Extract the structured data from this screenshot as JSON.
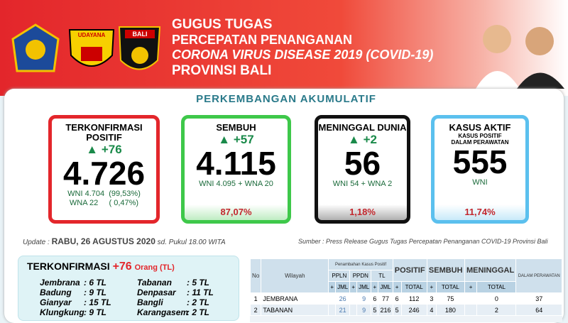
{
  "header": {
    "title_lines": [
      "GUGUS TUGAS",
      "PERCEPATAN PENANGANAN",
      "CORONA VIRUS DISEASE 2019 (COVID-19)",
      "PROVINSI BALI"
    ],
    "logo_texts": [
      "UDAYANA",
      "BALI"
    ]
  },
  "section_title": "PERKEMBANGAN AKUMULATIF",
  "cards": [
    {
      "label": "TERKONFIRMASI POSITIF",
      "change": "+76",
      "value": "4.726",
      "details": [
        "WNI 4.704  (99,53%)",
        "WNA 22     ( 0,47%)"
      ],
      "color": "#e3262b"
    },
    {
      "label": "SEMBUH",
      "change": "+57",
      "value": "4.115",
      "details": [
        "WNI 4.095 + WNA 20"
      ],
      "percent": "87,07%",
      "color": "#3ec84a"
    },
    {
      "label": "MENINGGAL DUNIA",
      "change": "+2",
      "value": "56",
      "details": [
        "WNI 54 + WNA 2"
      ],
      "percent": "1,18%",
      "color": "#111111"
    },
    {
      "label": "KASUS AKTIF",
      "sublabel": "KASUS POSITIF DALAM PERAWATAN",
      "value": "555",
      "details": [
        "WNI"
      ],
      "percent": "11,74%",
      "color": "#5bc0ee"
    }
  ],
  "update": {
    "label": "Update :",
    "date": "RABU, 26 AGUSTUS 2020",
    "time": "sd. Pukul 18.00 WITA",
    "source_label": "Sumber :",
    "source": "Press Release Gugus Tugas Percepatan Penanganan COVID-19 Provinsi Bali"
  },
  "konfirmasi": {
    "title": "TERKONFIRMASI",
    "change": "+76",
    "unit": "Orang (TL)",
    "rows": [
      [
        "Jembrana",
        ": 6 TL",
        "Tabanan",
        ": 5 TL"
      ],
      [
        "Badung",
        ": 9 TL",
        "Denpasar",
        ": 11 TL"
      ],
      [
        "Gianyar",
        ": 15 TL",
        "Bangli",
        ": 2 TL"
      ],
      [
        "Klungkung",
        ": 9 TL",
        "Karangasem",
        ": 2 TL"
      ]
    ]
  },
  "table": {
    "headers": [
      "No",
      "Wilayah",
      "Penambahan Kasus Positif",
      "PPLN",
      "PPDN",
      "TL",
      "POSITIF",
      "SEMBUH",
      "MENINGGAL",
      "DALAM PERAWATAN"
    ],
    "sub_plus": "+",
    "sub_jml": "JML",
    "sub_total": "TOTAL",
    "rows": [
      [
        1,
        "JEMBRANA",
        null,
        26,
        null,
        9,
        6,
        77,
        6,
        112,
        3,
        75,
        null,
        0,
        37
      ],
      [
        2,
        "TABANAN",
        null,
        21,
        null,
        9,
        5,
        216,
        5,
        246,
        4,
        180,
        null,
        2,
        64
      ]
    ]
  }
}
